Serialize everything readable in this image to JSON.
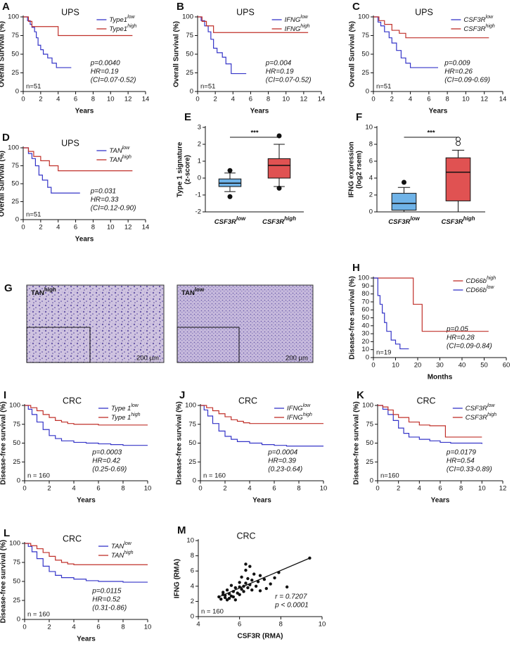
{
  "chart_data": [
    {
      "type": "km",
      "panel": "A",
      "title": "UPS",
      "ylabel": [
        "Overall Survival (%)"
      ],
      "xlabel": "Years",
      "xlim": [
        0,
        14
      ],
      "ylim": [
        0,
        100
      ],
      "xticks": [
        0,
        2,
        4,
        6,
        8,
        10,
        12,
        14
      ],
      "yticks": [
        0,
        25,
        50,
        75,
        100
      ],
      "n_label": "n=51",
      "annotations": [
        "p=0.0040",
        "HR=0.19",
        "(CI=0.07-0.52)"
      ],
      "series": [
        {
          "name": "Type1",
          "sup": "low",
          "color": "#3535c8",
          "x": [
            0,
            0.5,
            0.8,
            1,
            1.3,
            1.5,
            1.7,
            2,
            2.3,
            2.8,
            3.3,
            3.8,
            5.5
          ],
          "values": [
            100,
            95,
            90,
            86,
            80,
            72,
            62,
            56,
            50,
            45,
            38,
            32,
            32
          ]
        },
        {
          "name": "Type1",
          "sup": "high",
          "color": "#c0302a",
          "x": [
            0,
            0.6,
            1,
            4,
            12.5
          ],
          "values": [
            100,
            94,
            87,
            75,
            75
          ]
        }
      ]
    },
    {
      "type": "km",
      "panel": "B",
      "title": "UPS",
      "ylabel": [
        "Overall Survival (%)"
      ],
      "xlabel": "Years",
      "xlim": [
        0,
        14
      ],
      "ylim": [
        0,
        100
      ],
      "xticks": [
        0,
        2,
        4,
        6,
        8,
        10,
        12,
        14
      ],
      "yticks": [
        0,
        25,
        50,
        75,
        100
      ],
      "n_label": "n=51",
      "annotations": [
        "p=0.004",
        "HR=0.19",
        "(CI=0.07-0.52)"
      ],
      "series": [
        {
          "name": "IFNG",
          "sup": "low",
          "color": "#3535c8",
          "x": [
            0,
            0.4,
            0.8,
            1.2,
            1.5,
            1.8,
            2.2,
            2.8,
            3.2,
            3.8,
            5.5
          ],
          "values": [
            100,
            95,
            88,
            80,
            70,
            58,
            52,
            46,
            37,
            24,
            24
          ]
        },
        {
          "name": "IFNG",
          "sup": "high",
          "color": "#c0302a",
          "x": [
            0,
            0.5,
            1,
            1.8,
            12.5
          ],
          "values": [
            100,
            94,
            88,
            79,
            79
          ]
        }
      ]
    },
    {
      "type": "km",
      "panel": "C",
      "title": "UPS",
      "ylabel": [
        "Overall Survival (%)"
      ],
      "xlabel": "Years",
      "xlim": [
        0,
        14
      ],
      "ylim": [
        0,
        100
      ],
      "xticks": [
        0,
        2,
        4,
        6,
        8,
        10,
        12,
        14
      ],
      "yticks": [
        0,
        25,
        50,
        75,
        100
      ],
      "n_label": "n=51",
      "annotations": [
        "p=0.009",
        "HR=0.26",
        "(CI=0.09-0.69)"
      ],
      "series": [
        {
          "name": "CSF3R",
          "sup": "low",
          "color": "#3535c8",
          "x": [
            0,
            0.5,
            0.8,
            1.2,
            1.7,
            2,
            2.5,
            3,
            3.5,
            4,
            7
          ],
          "values": [
            100,
            93,
            88,
            80,
            72,
            65,
            55,
            45,
            38,
            32,
            32
          ]
        },
        {
          "name": "CSF3R",
          "sup": "high",
          "color": "#c0302a",
          "x": [
            0,
            0.6,
            1.2,
            2,
            2.8,
            3.5,
            12.5
          ],
          "values": [
            100,
            95,
            90,
            82,
            78,
            72,
            72
          ]
        }
      ]
    },
    {
      "type": "km",
      "panel": "D",
      "title": "UPS",
      "ylabel": [
        "Overall Survival (%)"
      ],
      "xlabel": "Years",
      "xlim": [
        0,
        14
      ],
      "ylim": [
        0,
        100
      ],
      "xticks": [
        0,
        2,
        4,
        6,
        8,
        10,
        12,
        14
      ],
      "yticks": [
        0,
        25,
        50,
        75,
        100
      ],
      "n_label": "n=51",
      "annotations": [
        "p=0.031",
        "HR=0.33",
        "(CI=0.12-0.90)"
      ],
      "series": [
        {
          "name": "TAN",
          "sup": "low",
          "color": "#3535c8",
          "x": [
            0,
            0.6,
            1,
            1.4,
            1.8,
            2.2,
            2.8,
            3.2,
            6.5
          ],
          "values": [
            100,
            92,
            85,
            75,
            62,
            55,
            45,
            37,
            37
          ]
        },
        {
          "name": "TAN",
          "sup": "high",
          "color": "#c0302a",
          "x": [
            0,
            0.6,
            1.2,
            2,
            3,
            4,
            12.5
          ],
          "values": [
            100,
            95,
            88,
            82,
            75,
            68,
            68
          ]
        }
      ]
    },
    {
      "type": "box",
      "panel": "E",
      "ylabel": [
        "Type 1 signature",
        "(z-score)"
      ],
      "ylim": [
        -2,
        3
      ],
      "yticks": [
        -2,
        -1,
        0,
        1,
        2,
        3
      ],
      "significance": "***",
      "categories": [
        "CSF3R",
        "CSF3R"
      ],
      "category_sups": [
        "low",
        "high"
      ],
      "colors": [
        "#6fb3e8",
        "#e05252"
      ],
      "boxes": [
        {
          "min": -0.8,
          "q1": -0.5,
          "median": -0.3,
          "q3": -0.05,
          "max": 0.3,
          "outliers": [
            -1.1,
            0.45
          ]
        },
        {
          "min": -0.5,
          "q1": 0,
          "median": 0.75,
          "q3": 1.15,
          "max": 2.0,
          "outliers": [
            -0.6,
            2.5
          ]
        }
      ]
    },
    {
      "type": "box",
      "panel": "F",
      "ylabel": [
        "IFNG expression",
        "(log2 rsem)"
      ],
      "ylim": [
        0,
        10
      ],
      "yticks": [
        0,
        2,
        4,
        6,
        8,
        10
      ],
      "significance": "***",
      "categories": [
        "CSF3R",
        "CSF3R"
      ],
      "category_sups": [
        "low",
        "high"
      ],
      "colors": [
        "#6fb3e8",
        "#e05252"
      ],
      "boxes": [
        {
          "min": 0,
          "q1": 0.2,
          "median": 1.0,
          "q3": 2.2,
          "max": 2.9,
          "outliers": [
            3.5
          ]
        },
        {
          "min": 0,
          "q1": 1.3,
          "median": 4.7,
          "q3": 6.4,
          "max": 7.3,
          "outliers": [
            8.1,
            8.6
          ]
        }
      ]
    },
    {
      "type": "km",
      "panel": "H",
      "ylabel": [
        "Disease-free survival (%)"
      ],
      "xlabel": "Months",
      "xlim": [
        0,
        60
      ],
      "ylim": [
        0,
        100
      ],
      "xticks": [
        0,
        10,
        20,
        30,
        40,
        50,
        60
      ],
      "yticks": [
        0,
        10,
        20,
        30,
        40,
        50,
        60,
        70,
        80,
        90,
        100
      ],
      "n_label": "n=19",
      "annotations": [
        "p=0.05",
        "HR=0.28",
        "(CI=0.09-0.84)"
      ],
      "series": [
        {
          "name": "CD66b",
          "sup": "high",
          "color": "#c0302a",
          "x": [
            0,
            18,
            22,
            52
          ],
          "values": [
            100,
            67,
            33,
            33
          ]
        },
        {
          "name": "CD66b",
          "sup": "low",
          "color": "#3535c8",
          "x": [
            0,
            2,
            3,
            4,
            5,
            6,
            8,
            10,
            12,
            16
          ],
          "values": [
            100,
            78,
            67,
            56,
            44,
            33,
            22,
            17,
            11,
            11
          ]
        }
      ]
    },
    {
      "type": "km",
      "panel": "I",
      "title": "CRC",
      "ylabel": [
        "Disease-free survival (%)"
      ],
      "xlabel": "Years",
      "xlim": [
        0,
        10
      ],
      "ylim": [
        0,
        100
      ],
      "xticks": [
        0,
        2,
        4,
        6,
        8,
        10
      ],
      "yticks": [
        0,
        25,
        50,
        75,
        100
      ],
      "n_label": "n = 160",
      "annotations": [
        "p=0.0003",
        "HR=0.42",
        "(0.25-0.69)"
      ],
      "series": [
        {
          "name": "Type 1",
          "sup": "low",
          "color": "#3535c8",
          "x": [
            0,
            0.3,
            0.6,
            1,
            1.5,
            2,
            2.5,
            3,
            4,
            5,
            6,
            7,
            8,
            10
          ],
          "values": [
            100,
            95,
            88,
            78,
            68,
            60,
            56,
            53,
            51,
            50,
            49,
            48,
            47,
            47
          ]
        },
        {
          "name": "Type 1",
          "sup": "high",
          "color": "#c0302a",
          "x": [
            0,
            0.5,
            1,
            1.5,
            2,
            2.5,
            3,
            3.5,
            4,
            6,
            10
          ],
          "values": [
            100,
            97,
            93,
            88,
            84,
            80,
            78,
            76,
            75,
            74,
            74
          ]
        }
      ]
    },
    {
      "type": "km",
      "panel": "J",
      "title": "CRC",
      "ylabel": [
        "Disease-free survival (%)"
      ],
      "xlabel": "Years",
      "xlim": [
        0,
        10
      ],
      "ylim": [
        0,
        100
      ],
      "xticks": [
        0,
        2,
        4,
        6,
        8,
        10
      ],
      "yticks": [
        0,
        25,
        50,
        75,
        100
      ],
      "n_label": "n = 160",
      "annotations": [
        "p=0.0004",
        "HR=0.39",
        "(0.23-0.64)"
      ],
      "series": [
        {
          "name": "IFNG",
          "sup": "low",
          "color": "#3535c8",
          "x": [
            0,
            0.3,
            0.6,
            1,
            1.5,
            2,
            2.5,
            3,
            4,
            5,
            6,
            7,
            8,
            10
          ],
          "values": [
            100,
            94,
            86,
            76,
            66,
            59,
            55,
            52,
            50,
            48,
            47,
            46,
            46,
            46
          ]
        },
        {
          "name": "IFNG",
          "sup": "high",
          "color": "#c0302a",
          "x": [
            0,
            0.5,
            1,
            1.5,
            2,
            2.5,
            3,
            3.5,
            4,
            6,
            10
          ],
          "values": [
            100,
            97,
            93,
            89,
            85,
            81,
            79,
            77,
            76,
            76,
            76
          ]
        }
      ]
    },
    {
      "type": "km",
      "panel": "K",
      "title": "CRC",
      "ylabel": [
        "Disease-free survival (%)"
      ],
      "xlabel": "Years",
      "xlim": [
        0,
        12
      ],
      "ylim": [
        0,
        100
      ],
      "xticks": [
        0,
        2,
        4,
        6,
        8,
        10,
        12
      ],
      "yticks": [
        0,
        25,
        50,
        75,
        100
      ],
      "n_label": "n=160",
      "annotations": [
        "p=0.0179",
        "HR=0.54",
        "(CI=0.33-0.89)"
      ],
      "series": [
        {
          "name": "CSF3R",
          "sup": "low",
          "color": "#3535c8",
          "x": [
            0,
            0.5,
            1,
            1.5,
            2,
            2.5,
            3,
            4,
            5,
            6,
            7,
            10
          ],
          "values": [
            100,
            95,
            88,
            80,
            70,
            63,
            58,
            55,
            53,
            51,
            50,
            49
          ]
        },
        {
          "name": "CSF3R",
          "sup": "high",
          "color": "#c0302a",
          "x": [
            0,
            0.5,
            1,
            1.5,
            2,
            3,
            4,
            5,
            6.5,
            10
          ],
          "values": [
            100,
            98,
            94,
            88,
            84,
            78,
            74,
            73,
            58,
            58
          ]
        }
      ]
    },
    {
      "type": "km",
      "panel": "L",
      "title": "CRC",
      "ylabel": [
        "Disease-free survival (%)"
      ],
      "xlabel": "Years",
      "xlim": [
        0,
        10
      ],
      "ylim": [
        0,
        100
      ],
      "xticks": [
        0,
        2,
        4,
        6,
        8,
        10
      ],
      "yticks": [
        0,
        25,
        50,
        75,
        100
      ],
      "n_label": "n = 160",
      "annotations": [
        "p=0.0115",
        "HR=0.52",
        "(0.31-0.86)"
      ],
      "series": [
        {
          "name": "TAN",
          "sup": "low",
          "color": "#3535c8",
          "x": [
            0,
            0.3,
            0.6,
            1,
            1.5,
            2,
            2.5,
            3,
            4,
            5,
            6,
            7,
            8,
            10
          ],
          "values": [
            100,
            96,
            89,
            80,
            70,
            63,
            58,
            55,
            53,
            51,
            50,
            50,
            49,
            49
          ]
        },
        {
          "name": "TAN",
          "sup": "high",
          "color": "#c0302a",
          "x": [
            0,
            0.5,
            1,
            1.5,
            2,
            2.5,
            3,
            3.5,
            4,
            6,
            10
          ],
          "values": [
            100,
            97,
            93,
            88,
            83,
            78,
            75,
            73,
            72,
            72,
            72
          ]
        }
      ]
    },
    {
      "type": "scatter",
      "panel": "M",
      "title": "CRC",
      "ylabel": [
        "IFNG (RMA)"
      ],
      "xlabel": "CSF3R (RMA)",
      "xlim": [
        4,
        10
      ],
      "ylim": [
        0,
        10
      ],
      "xticks": [
        4,
        6,
        8,
        10
      ],
      "yticks": [
        0,
        2,
        4,
        6,
        8,
        10
      ],
      "n_label": "n = 160",
      "annotations": [
        "r = 0.7207",
        "p < 0.0001"
      ],
      "color": "#111111",
      "x": [
        5.0,
        5.1,
        5.2,
        5.2,
        5.3,
        5.3,
        5.4,
        5.5,
        5.5,
        5.6,
        5.6,
        5.7,
        5.8,
        5.8,
        5.9,
        6.0,
        6.0,
        6.1,
        6.1,
        6.2,
        6.2,
        6.3,
        6.3,
        6.4,
        6.4,
        6.5,
        6.5,
        6.6,
        6.6,
        6.7,
        6.8,
        6.9,
        7.0,
        7.0,
        7.2,
        7.3,
        7.5,
        7.7,
        7.9,
        8.3,
        9.4,
        5.4,
        5.7,
        6.0,
        6.3
      ],
      "values": [
        2.6,
        2.3,
        2.9,
        3.2,
        2.5,
        2.8,
        3.5,
        2.4,
        3.0,
        2.7,
        4.1,
        3.3,
        2.2,
        3.8,
        3.1,
        4.5,
        2.9,
        3.6,
        5.2,
        4.0,
        3.3,
        4.4,
        6.1,
        3.8,
        5.0,
        4.2,
        6.6,
        3.5,
        4.8,
        5.6,
        4.0,
        4.6,
        3.4,
        5.4,
        4.9,
        3.7,
        4.3,
        5.1,
        5.8,
        3.9,
        7.7,
        2.2,
        2.6,
        3.9,
        6.9
      ],
      "fit": {
        "x": [
          5,
          9.4
        ],
        "y": [
          2.6,
          7.7
        ]
      }
    }
  ],
  "figure_g": {
    "panel": "G",
    "images": [
      {
        "label": "TAN",
        "sup": "high",
        "scale": "200 µm"
      },
      {
        "label": "TAN",
        "sup": "low",
        "scale": "200 µm"
      }
    ]
  }
}
